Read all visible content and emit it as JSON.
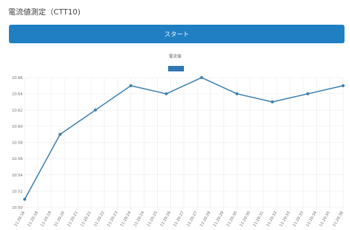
{
  "page": {
    "title": "電流値測定（CTT10)",
    "start_button_label": "スタート"
  },
  "colors": {
    "button": "#1f7fc2",
    "series_line": "#3a7fb0",
    "series_legend": "#2e77b3",
    "grid": "#e8e8e8",
    "tick_text": "#666666"
  },
  "chart_data": {
    "type": "line",
    "legend": {
      "position": "top-center",
      "labels": [
        "電流値"
      ]
    },
    "grid": true,
    "ylim": [
      10.5,
      10.66
    ],
    "y_ticks": [
      "10.66",
      "10.64",
      "10.62",
      "10.60",
      "10.58",
      "10.56",
      "10.54",
      "10.52",
      "10.50"
    ],
    "x_ticks": [
      "11:20:18",
      "11:20:18",
      "11:20:19",
      "11:20:20",
      "11:20:21",
      "11:20:21",
      "11:20:22",
      "11:20:23",
      "11:20:24",
      "11:20:24",
      "11:20:25",
      "11:20:26",
      "11:20:27",
      "11:20:27",
      "11:20:28",
      "11:20:29",
      "11:20:30",
      "11:20:30",
      "11:20:31",
      "11:20:32",
      "11:20:33",
      "11:20:33",
      "11:20:34",
      "11:20:35",
      "11:20:36"
    ],
    "series": [
      {
        "name": "電流値",
        "points": [
          {
            "x": "11:20:18",
            "y": 10.51
          },
          {
            "x": "11:20:20",
            "y": 10.59
          },
          {
            "x": "11:20:22",
            "y": 10.62
          },
          {
            "x": "11:20:24",
            "y": 10.65
          },
          {
            "x": "11:20:26",
            "y": 10.64
          },
          {
            "x": "11:20:28",
            "y": 10.66
          },
          {
            "x": "11:20:30",
            "y": 10.64
          },
          {
            "x": "11:20:32",
            "y": 10.63
          },
          {
            "x": "11:20:34",
            "y": 10.64
          },
          {
            "x": "11:20:36",
            "y": 10.65
          }
        ]
      }
    ]
  }
}
